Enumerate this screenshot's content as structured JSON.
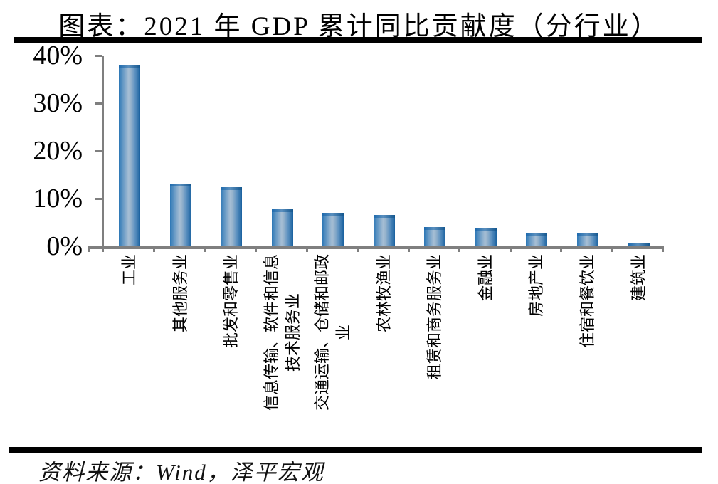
{
  "page": {
    "title": "图表：2021 年 GDP 累计同比贡献度（分行业）",
    "source": "资料来源：Wind，泽平宏观"
  },
  "chart_data": {
    "type": "bar",
    "title": "2021 年 GDP 累计同比贡献度（分行业）",
    "categories": [
      "工业",
      "其他服务业",
      "批发和零售业",
      "信息传输、软件和信息\n技术服务业",
      "交通运输、仓储和邮政\n业",
      "农林牧渔业",
      "租赁和商务服务业",
      "金融业",
      "房地产业",
      "住宿和餐饮业",
      "建筑业"
    ],
    "values": [
      38.0,
      13.2,
      12.4,
      7.7,
      7.0,
      6.6,
      4.0,
      3.8,
      2.9,
      2.8,
      0.8
    ],
    "unit": "%",
    "xlabel": "",
    "ylabel": "",
    "ylim": [
      0,
      40
    ],
    "ytick_labels": [
      "0%",
      "10%",
      "20%",
      "30%",
      "40%"
    ],
    "grid": false,
    "legend": false,
    "colors": {
      "bar_edge_left": "#2E78B6",
      "bar_center_light": "#A6BED4",
      "bar_edge_right": "#19619F",
      "bar_cap_dark": "#1E6AAD",
      "axis_gray": "#7f7f7f",
      "text_black": "#000000"
    }
  }
}
